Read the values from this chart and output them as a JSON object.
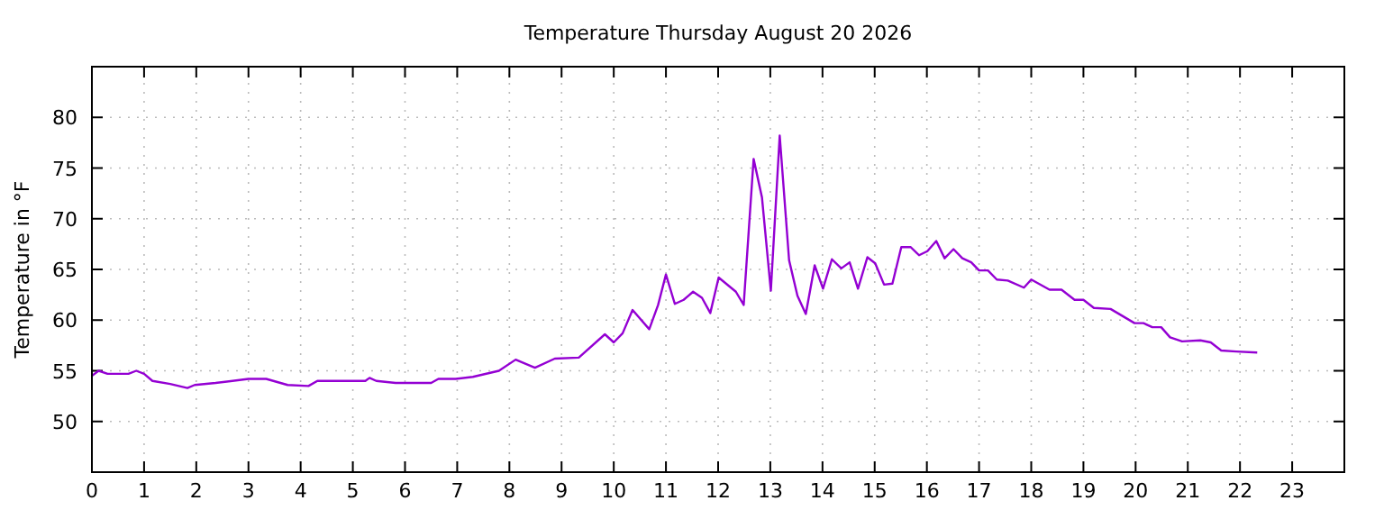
{
  "chart_data": {
    "type": "line",
    "title": "Temperature Thursday August 20 2026",
    "ylabel": "Temperature in °F",
    "xlim": [
      0,
      24
    ],
    "xticks": [
      0,
      1,
      2,
      3,
      4,
      5,
      6,
      7,
      8,
      9,
      10,
      11,
      12,
      13,
      14,
      15,
      16,
      17,
      18,
      19,
      20,
      21,
      22,
      23
    ],
    "ylim": [
      45,
      85
    ],
    "yticks": [
      50,
      55,
      60,
      65,
      70,
      75,
      80
    ],
    "grid": true,
    "series": [
      {
        "color": "#9400d3",
        "x": [
          0,
          0.13,
          0.3,
          0.7,
          0.85,
          1,
          1.16,
          1.5,
          1.83,
          1.97,
          2.37,
          3,
          3.34,
          3.75,
          4.15,
          4.32,
          5.01,
          5.24,
          5.32,
          5.45,
          5.82,
          6.5,
          6.64,
          6.97,
          7.3,
          7.8,
          8.12,
          8.49,
          8.87,
          9.33,
          9.83,
          10,
          10.17,
          10.36,
          10.68,
          10.85,
          11,
          11.17,
          11.34,
          11.52,
          11.69,
          11.85,
          12.01,
          12.34,
          12.49,
          12.68,
          12.84,
          13.01,
          13.18,
          13.36,
          13.52,
          13.68,
          13.85,
          14.01,
          14.18,
          14.36,
          14.52,
          14.68,
          14.86,
          15.01,
          15.18,
          15.34,
          15.51,
          15.69,
          15.85,
          16.01,
          16.18,
          16.34,
          16.51,
          16.68,
          16.85,
          17,
          17.17,
          17.34,
          17.55,
          17.86,
          18,
          18.35,
          18.58,
          18.83,
          19,
          19.2,
          19.52,
          19.98,
          20.15,
          20.32,
          20.49,
          20.66,
          20.89,
          21.24,
          21.44,
          21.64,
          21.93,
          22.33
        ],
        "values": [
          54.5,
          55,
          54.7,
          54.7,
          55,
          54.7,
          54,
          53.7,
          53.3,
          53.6,
          53.8,
          54.2,
          54.2,
          53.6,
          53.5,
          54,
          54,
          54,
          54.3,
          54,
          53.8,
          53.8,
          54.2,
          54.2,
          54.4,
          55,
          56.1,
          55.3,
          56.2,
          56.3,
          58.6,
          57.8,
          58.7,
          61,
          59.1,
          61.5,
          64.5,
          61.6,
          62,
          62.8,
          62.2,
          60.7,
          64.2,
          62.8,
          61.5,
          75.9,
          72.1,
          62.9,
          78.2,
          65.9,
          62.4,
          60.6,
          65.4,
          63.1,
          66,
          65.1,
          65.7,
          63.1,
          66.2,
          65.6,
          63.5,
          63.6,
          67.2,
          67.2,
          66.4,
          66.8,
          67.8,
          66.1,
          67,
          66.1,
          65.7,
          64.9,
          64.9,
          64,
          63.9,
          63.2,
          64,
          63,
          63,
          62,
          62,
          61.2,
          61.1,
          59.7,
          59.7,
          59.3,
          59.3,
          58.3,
          57.9,
          58,
          57.8,
          57,
          56.9,
          56.8
        ]
      }
    ]
  }
}
